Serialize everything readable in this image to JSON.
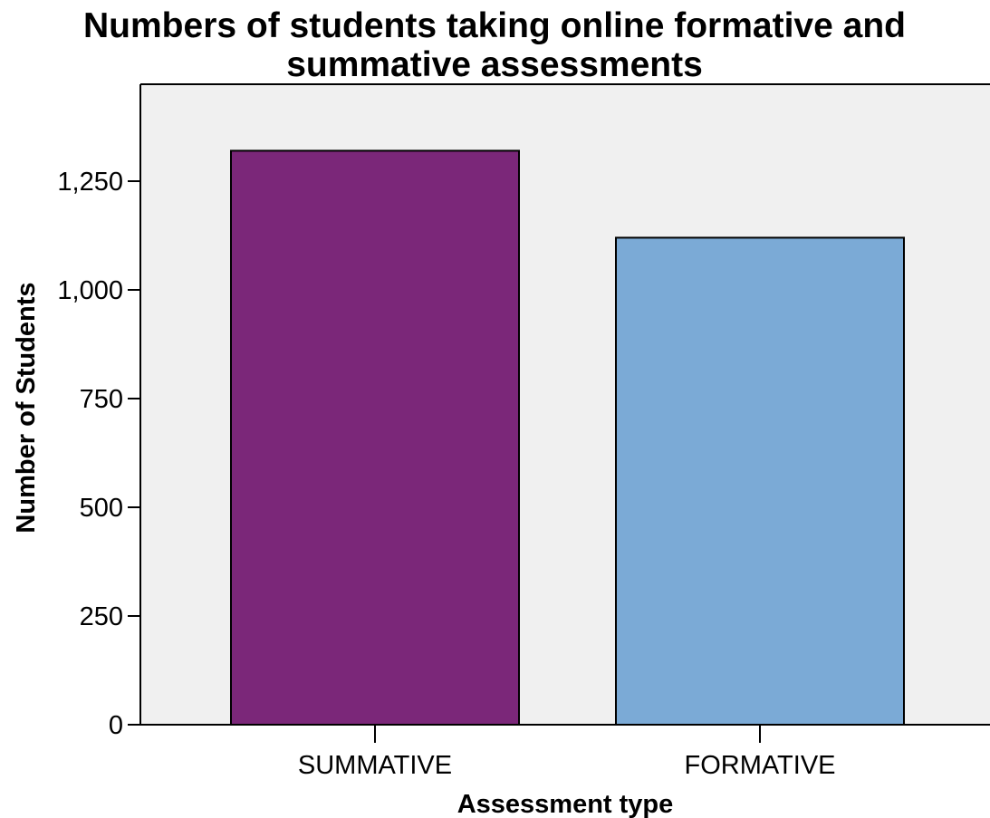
{
  "chart_data": {
    "type": "bar",
    "title_lines": [
      "Numbers of students taking online formative and",
      "summative assessments"
    ],
    "title": "Numbers of students taking online formative and summative assessments",
    "xlabel": "Assessment type",
    "ylabel": "Number of Students",
    "categories": [
      "SUMMATIVE",
      "FORMATIVE"
    ],
    "values": [
      1320,
      1120
    ],
    "colors": [
      "#7b2779",
      "#7baad6"
    ],
    "ylim": [
      0,
      1460
    ],
    "yticks": [
      0,
      250,
      500,
      750,
      1000,
      1250
    ],
    "ytick_labels": [
      "0",
      "250",
      "500",
      "750",
      "1,000",
      "1,250"
    ],
    "plot_background": "#f0f0f0",
    "grid": false,
    "legend": "none"
  }
}
